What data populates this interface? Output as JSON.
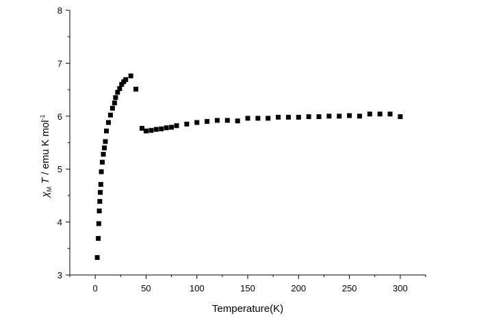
{
  "chart_data": {
    "type": "scatter",
    "title": "",
    "xlabel": "Temperature(K)",
    "ylabel": {
      "symbol": "χ",
      "subscript": "M",
      "variable": "T",
      "text": " / emu K mol",
      "superscript": "-1"
    },
    "xlim": [
      -25,
      325
    ],
    "ylim": [
      3,
      8
    ],
    "x_ticks": [
      0,
      50,
      100,
      150,
      200,
      250,
      300
    ],
    "y_ticks": [
      3,
      4,
      5,
      6,
      7,
      8
    ],
    "x_tick_labels": [
      "0",
      "50",
      "100",
      "150",
      "200",
      "250",
      "300"
    ],
    "y_tick_labels": [
      "3",
      "4",
      "5",
      "6",
      "7",
      "8"
    ],
    "grid": false,
    "marker": "square",
    "marker_color": "#000000",
    "series": [
      {
        "x": [
          2,
          3,
          3.5,
          4,
          4.5,
          5,
          5.5,
          6,
          7,
          8,
          9,
          10,
          11,
          13,
          15,
          17,
          19,
          20,
          22,
          24,
          26,
          28,
          30,
          35,
          40,
          46,
          50,
          55,
          60,
          65,
          70,
          75,
          80,
          90,
          100,
          110,
          120,
          130,
          140,
          150,
          160,
          170,
          180,
          190,
          200,
          210,
          220,
          230,
          240,
          250,
          260,
          270,
          280,
          290,
          300
        ],
        "y": [
          3.33,
          3.69,
          3.97,
          4.21,
          4.39,
          4.56,
          4.71,
          4.95,
          5.13,
          5.28,
          5.4,
          5.52,
          5.72,
          5.88,
          6.02,
          6.15,
          6.25,
          6.35,
          6.45,
          6.52,
          6.6,
          6.65,
          6.69,
          6.76,
          6.51,
          5.77,
          5.72,
          5.73,
          5.75,
          5.76,
          5.78,
          5.79,
          5.82,
          5.85,
          5.88,
          5.9,
          5.92,
          5.92,
          5.91,
          5.96,
          5.96,
          5.96,
          5.98,
          5.98,
          5.98,
          5.99,
          5.99,
          6.0,
          6.0,
          6.01,
          6.0,
          6.04,
          6.04,
          6.04,
          5.99
        ]
      }
    ]
  }
}
